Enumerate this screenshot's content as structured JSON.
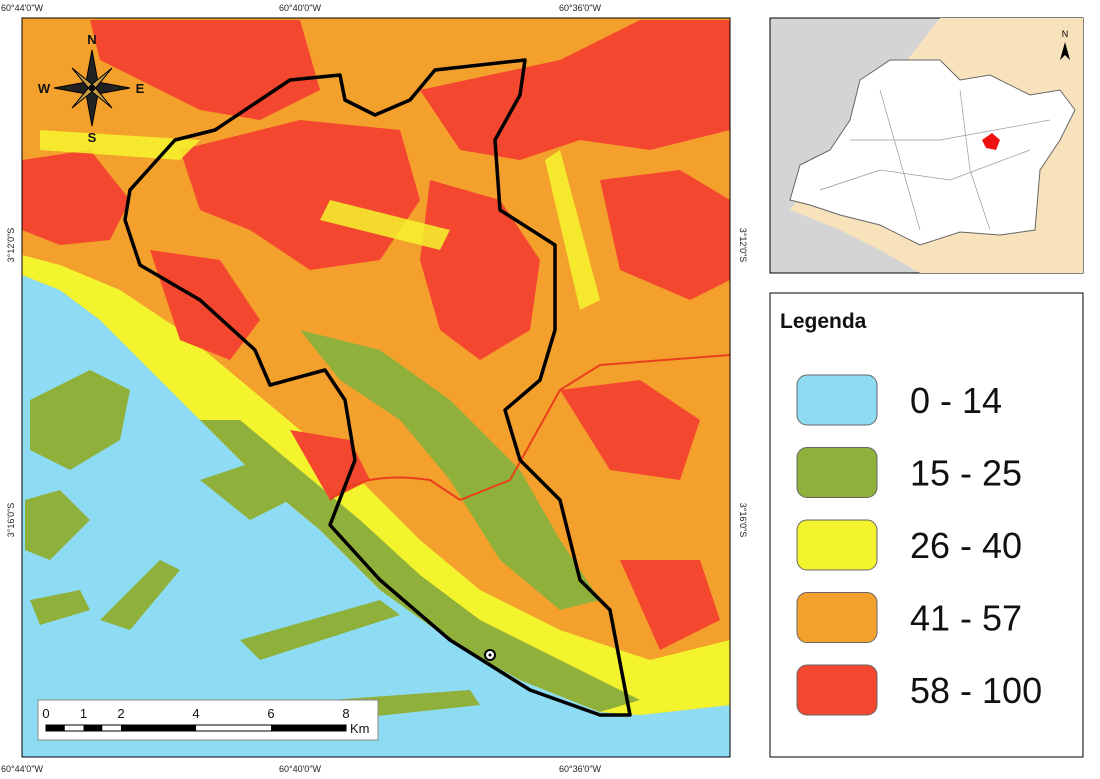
{
  "map": {
    "coordinates": {
      "top": [
        "60°44'0\"W",
        "60°40'0\"W",
        "60°36'0\"W"
      ],
      "bottom": [
        "60°44'0\"W",
        "60°40'0\"W",
        "60°36'0\"W"
      ],
      "left": [
        "3°12'0\"S",
        "3°16'0\"S"
      ],
      "right": [
        "3°12'0\"S",
        "3°16'0\"S"
      ]
    },
    "compass": {
      "north": "N",
      "east": "E",
      "south": "S",
      "west": "W"
    },
    "inset_north": "N",
    "scale_bar": {
      "labels": [
        "0",
        "1",
        "2",
        "4",
        "6",
        "8"
      ],
      "unit": "Km"
    },
    "legend": {
      "title": "Legenda",
      "items": [
        {
          "label": "0 - 14",
          "color": "#8ddcf4"
        },
        {
          "label": "15 - 25",
          "color": "#8fb03a"
        },
        {
          "label": "26 - 40",
          "color": "#f4f42e"
        },
        {
          "label": "41 - 57",
          "color": "#f4a02c"
        },
        {
          "label": "58 - 100",
          "color": "#f4472f"
        }
      ]
    }
  }
}
